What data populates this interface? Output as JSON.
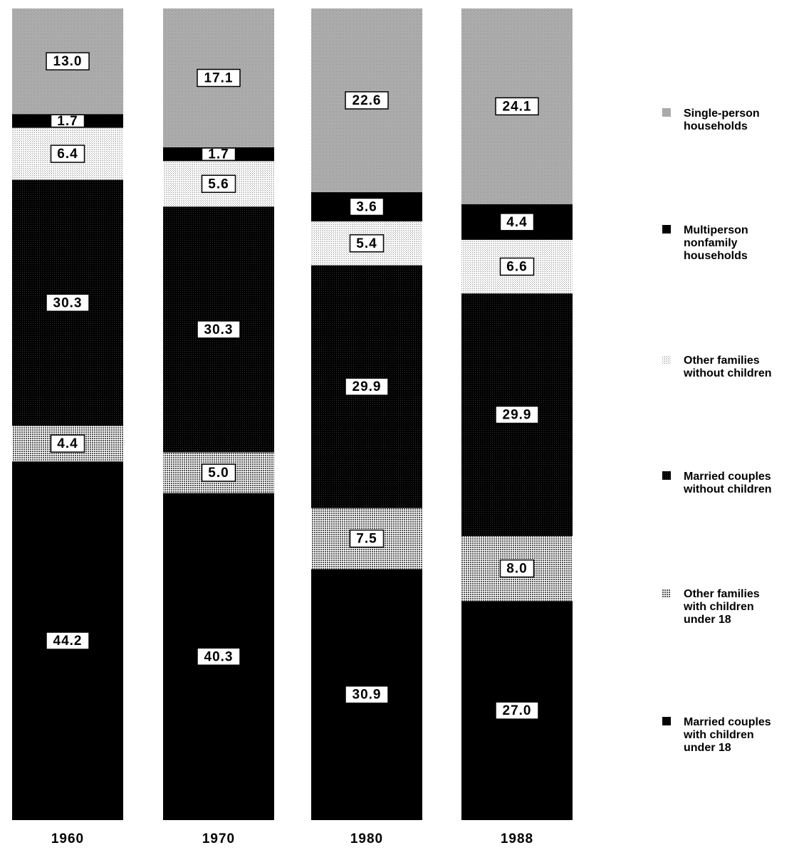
{
  "chart_data": {
    "type": "bar",
    "stacked": true,
    "normalized_percent": true,
    "categories": [
      "1960",
      "1970",
      "1980",
      "1988"
    ],
    "series": [
      {
        "name": "Married couples with children under 18",
        "values": [
          44.2,
          40.3,
          30.9,
          27.0
        ],
        "color": "#000000",
        "pattern": "solid"
      },
      {
        "name": "Other families with children under 18",
        "values": [
          4.4,
          5.0,
          7.5,
          8.0
        ],
        "color": "#9a9a9a",
        "pattern": "dots-medium"
      },
      {
        "name": "Married couples without children",
        "values": [
          30.3,
          30.3,
          29.9,
          29.9
        ],
        "color": "#0d0d0d",
        "pattern": "dots-dark"
      },
      {
        "name": "Other families without children",
        "values": [
          6.4,
          5.6,
          5.4,
          6.6
        ],
        "color": "#d4d4d4",
        "pattern": "dots-light"
      },
      {
        "name": "Multiperson nonfamily households",
        "values": [
          1.7,
          1.7,
          3.6,
          4.4
        ],
        "color": "#000000",
        "pattern": "solid"
      },
      {
        "name": "Single-person households",
        "values": [
          13.0,
          17.1,
          22.6,
          24.1
        ],
        "color": "#7a7a7a",
        "pattern": "dots-gray"
      }
    ],
    "legend": {
      "position": "right",
      "order": [
        5,
        4,
        3,
        2,
        1,
        0
      ],
      "lines": [
        [
          "Single-person",
          "households"
        ],
        [
          "Multiperson",
          "nonfamily",
          "households"
        ],
        [
          "Other families",
          "without children"
        ],
        [
          "Married couples",
          "without children"
        ],
        [
          "Other families",
          "with children",
          "under 18"
        ],
        [
          "Married couples",
          "with children",
          "under 18"
        ]
      ]
    },
    "data_labels": true,
    "grid": false,
    "ylim": [
      0,
      100
    ]
  }
}
